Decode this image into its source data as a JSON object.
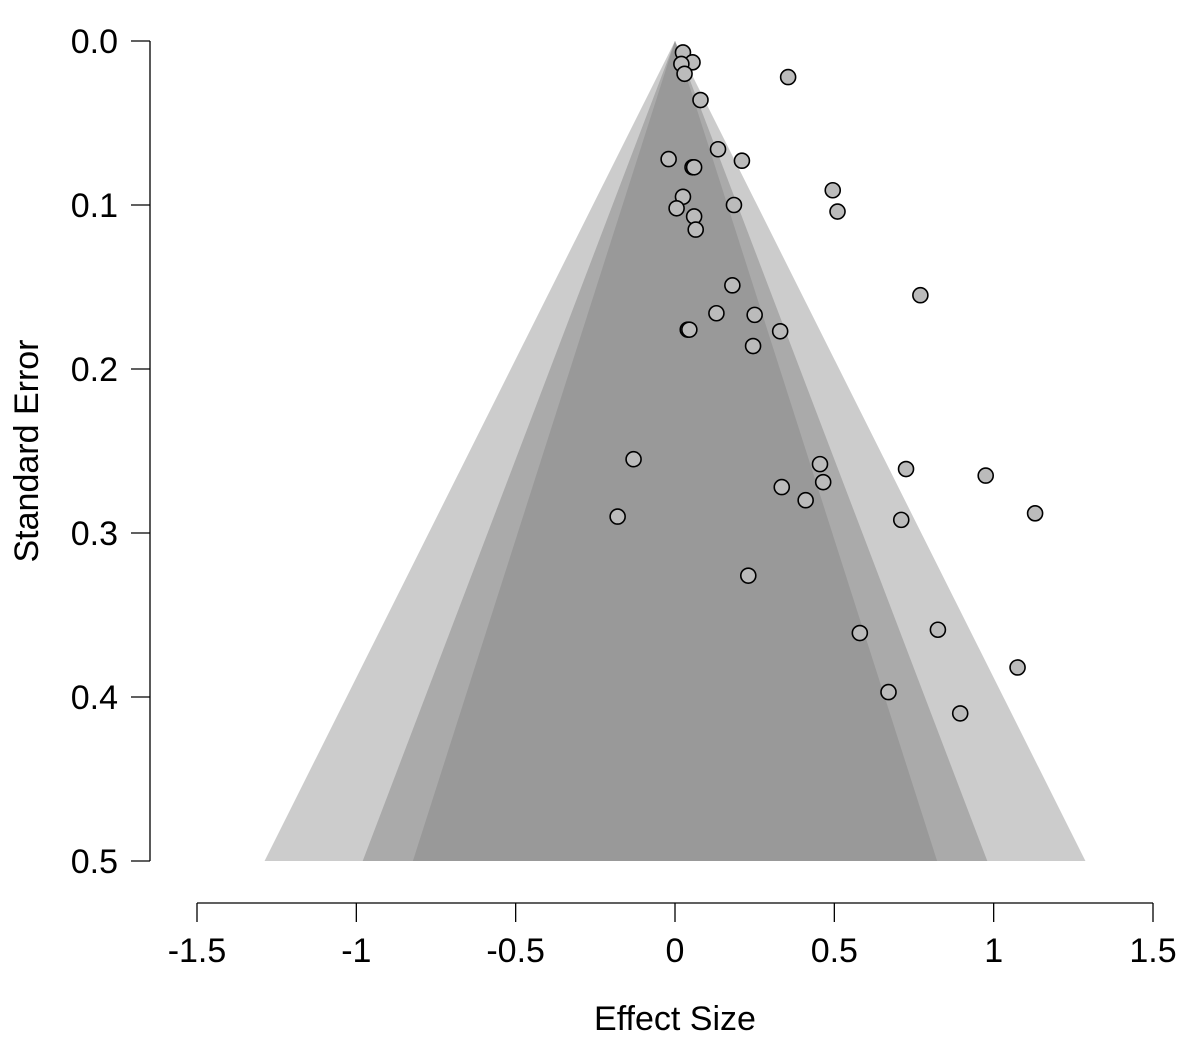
{
  "chart_data": {
    "type": "scatter",
    "title": "",
    "xlabel": "Effect Size",
    "ylabel": "Standard Error",
    "xlim": [
      -1.5,
      1.5
    ],
    "ylim": [
      0.0,
      0.5
    ],
    "y_reversed": true,
    "xticks": [
      "-1.5",
      "-1",
      "-0.5",
      "0",
      "0.5",
      "1",
      "1.5"
    ],
    "yticks": [
      "0.0",
      "0.1",
      "0.2",
      "0.3",
      "0.4",
      "0.5"
    ],
    "grid": false,
    "funnel": {
      "center": 0,
      "se_max": 0.5,
      "regions": [
        {
          "z": 2.576,
          "color": "#cccccc"
        },
        {
          "z": 1.96,
          "color": "#aaaaaa"
        },
        {
          "z": 1.645,
          "color": "#999999"
        }
      ]
    },
    "point_color": "#bbbbbb",
    "points": [
      {
        "x": 0.025,
        "y": 0.007
      },
      {
        "x": 0.055,
        "y": 0.013
      },
      {
        "x": 0.02,
        "y": 0.014
      },
      {
        "x": 0.03,
        "y": 0.02
      },
      {
        "x": 0.355,
        "y": 0.022
      },
      {
        "x": 0.08,
        "y": 0.036
      },
      {
        "x": 0.135,
        "y": 0.066
      },
      {
        "x": -0.02,
        "y": 0.072
      },
      {
        "x": 0.21,
        "y": 0.073
      },
      {
        "x": 0.055,
        "y": 0.077
      },
      {
        "x": 0.06,
        "y": 0.077
      },
      {
        "x": 0.495,
        "y": 0.091
      },
      {
        "x": 0.025,
        "y": 0.095
      },
      {
        "x": 0.185,
        "y": 0.1
      },
      {
        "x": 0.005,
        "y": 0.102
      },
      {
        "x": 0.51,
        "y": 0.104
      },
      {
        "x": 0.06,
        "y": 0.107
      },
      {
        "x": 0.065,
        "y": 0.115
      },
      {
        "x": 0.18,
        "y": 0.149
      },
      {
        "x": 0.77,
        "y": 0.155
      },
      {
        "x": 0.13,
        "y": 0.166
      },
      {
        "x": 0.25,
        "y": 0.167
      },
      {
        "x": 0.04,
        "y": 0.176
      },
      {
        "x": 0.045,
        "y": 0.176
      },
      {
        "x": 0.33,
        "y": 0.177
      },
      {
        "x": 0.245,
        "y": 0.186
      },
      {
        "x": -0.13,
        "y": 0.255
      },
      {
        "x": 0.455,
        "y": 0.258
      },
      {
        "x": 0.725,
        "y": 0.261
      },
      {
        "x": 0.975,
        "y": 0.265
      },
      {
        "x": 0.465,
        "y": 0.269
      },
      {
        "x": 0.335,
        "y": 0.272
      },
      {
        "x": 0.41,
        "y": 0.28
      },
      {
        "x": -0.18,
        "y": 0.29
      },
      {
        "x": 1.13,
        "y": 0.288
      },
      {
        "x": 0.71,
        "y": 0.292
      },
      {
        "x": 0.23,
        "y": 0.326
      },
      {
        "x": 0.58,
        "y": 0.361
      },
      {
        "x": 0.825,
        "y": 0.359
      },
      {
        "x": 1.075,
        "y": 0.382
      },
      {
        "x": 0.67,
        "y": 0.397
      },
      {
        "x": 0.895,
        "y": 0.41
      }
    ]
  }
}
